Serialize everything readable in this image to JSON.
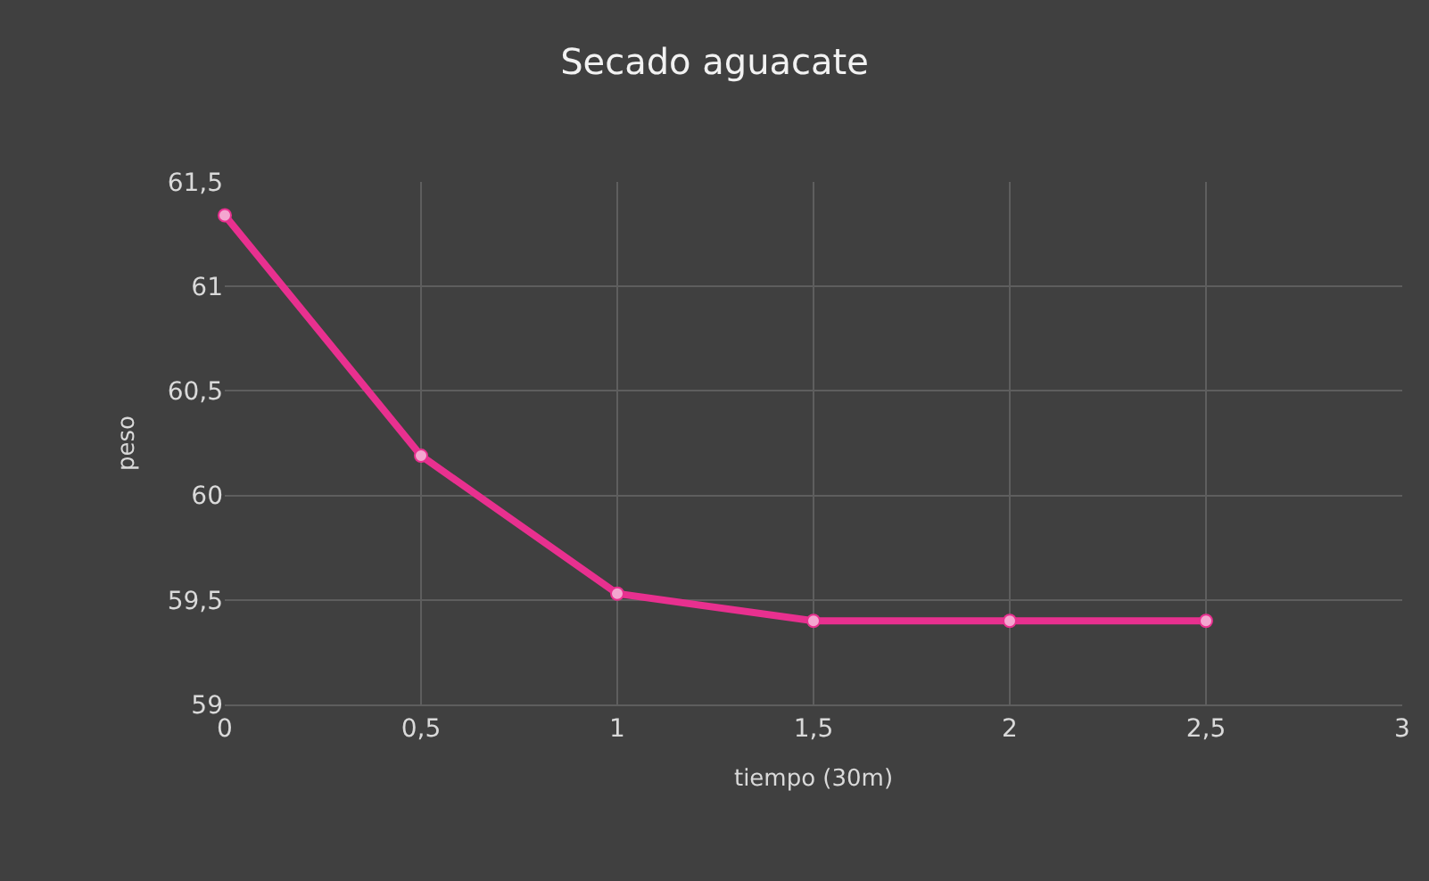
{
  "chart_data": {
    "type": "line",
    "title": "Secado aguacate",
    "xlabel": "tiempo (30m)",
    "ylabel": "peso",
    "x": [
      0,
      0.5,
      1,
      1.5,
      2,
      2.5
    ],
    "series": [
      {
        "color": "#e8308f",
        "values": [
          61.34,
          60.19,
          59.53,
          59.4,
          59.4,
          59.4
        ]
      }
    ],
    "xlim": [
      0,
      3
    ],
    "xticks": [
      0,
      {
        "value": 0.5,
        "label": "0,5"
      },
      1,
      {
        "value": 1.5,
        "label": "1,5"
      },
      2,
      {
        "value": 2.5,
        "label": "2,5"
      },
      3
    ],
    "ylim": [
      59,
      61.5
    ],
    "yticks": [
      59,
      {
        "value": 59.5,
        "label": "59,5"
      },
      60,
      {
        "value": 60.5,
        "label": "60,5"
      },
      61,
      {
        "value": 61.5,
        "label": "61,5"
      }
    ],
    "grid": true,
    "marker": "circle",
    "line_style": "solid"
  }
}
